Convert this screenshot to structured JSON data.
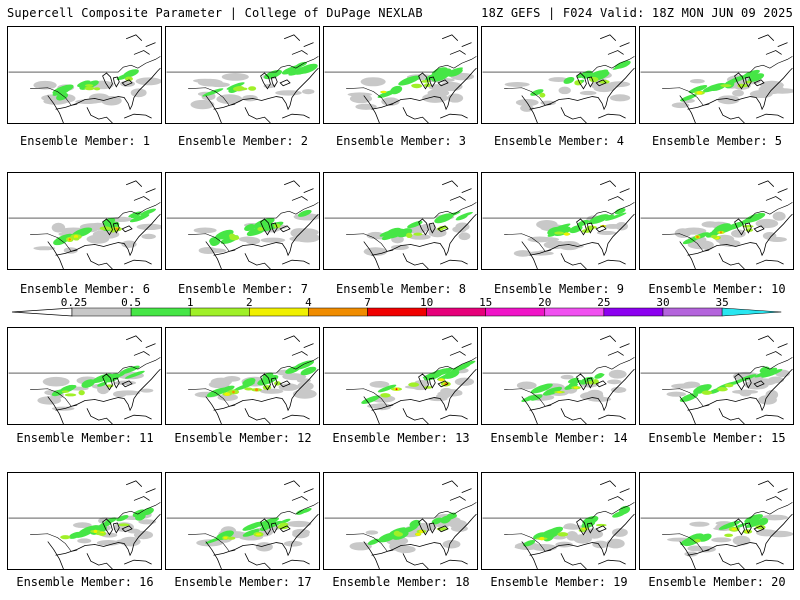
{
  "header": {
    "left": "Supercell Composite Parameter | College of DuPage NEXLAB",
    "right": "18Z GEFS | F024 Valid: 18Z MON JUN 09 2025"
  },
  "colors": {
    "land_outline": "#000000",
    "panel_bg": "#ffffff"
  },
  "colorbar": {
    "thresholds": [
      "0.25",
      "0.5",
      "1",
      "2",
      "4",
      "7",
      "10",
      "15",
      "20",
      "25",
      "30",
      "35"
    ],
    "colors": [
      "#c8c8c8",
      "#46e646",
      "#a0f028",
      "#f0f000",
      "#f08c00",
      "#f00000",
      "#e6007a",
      "#f014c8",
      "#f050f0",
      "#8c00f0",
      "#b464dc",
      "#28e6f0"
    ]
  },
  "members": [
    {
      "label": "Ensemble Member: 1",
      "intensity": 2
    },
    {
      "label": "Ensemble Member: 2",
      "intensity": 2
    },
    {
      "label": "Ensemble Member: 3",
      "intensity": 3
    },
    {
      "label": "Ensemble Member: 4",
      "intensity": 2
    },
    {
      "label": "Ensemble Member: 5",
      "intensity": 3
    },
    {
      "label": "Ensemble Member: 6",
      "intensity": 5
    },
    {
      "label": "Ensemble Member: 7",
      "intensity": 2
    },
    {
      "label": "Ensemble Member: 8",
      "intensity": 2
    },
    {
      "label": "Ensemble Member: 9",
      "intensity": 4
    },
    {
      "label": "Ensemble Member: 10",
      "intensity": 4
    },
    {
      "label": "Ensemble Member: 11",
      "intensity": 2
    },
    {
      "label": "Ensemble Member: 12",
      "intensity": 4
    },
    {
      "label": "Ensemble Member: 13",
      "intensity": 5
    },
    {
      "label": "Ensemble Member: 14",
      "intensity": 3
    },
    {
      "label": "Ensemble Member: 15",
      "intensity": 2
    },
    {
      "label": "Ensemble Member: 16",
      "intensity": 3
    },
    {
      "label": "Ensemble Member: 17",
      "intensity": 3
    },
    {
      "label": "Ensemble Member: 18",
      "intensity": 3
    },
    {
      "label": "Ensemble Member: 19",
      "intensity": 3
    },
    {
      "label": "Ensemble Member: 20",
      "intensity": 3
    }
  ]
}
